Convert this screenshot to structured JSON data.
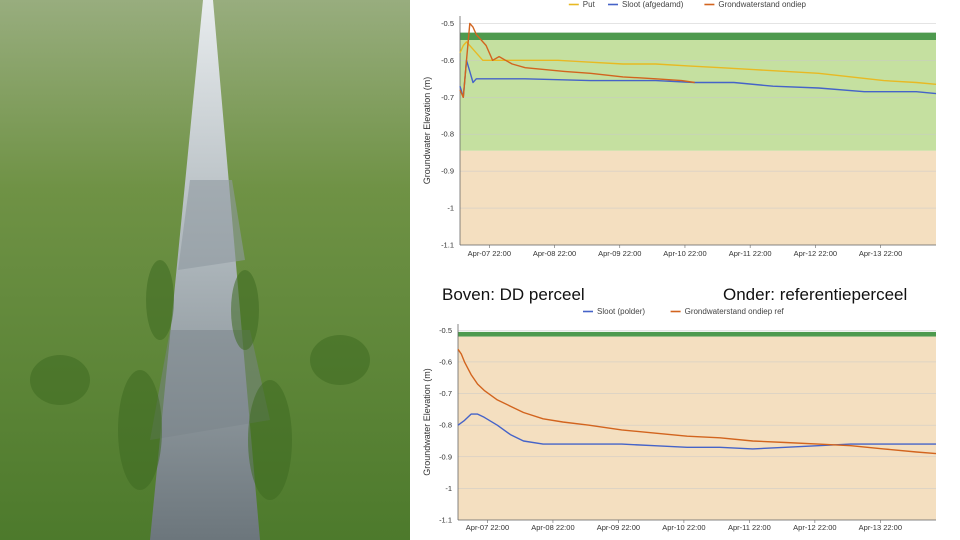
{
  "captions": {
    "left": "Boven: DD perceel",
    "right": "Onder: referentieperceel"
  },
  "photo": {
    "icon": "flooded-field-ditch-photo",
    "colors": {
      "grass": "#5f8a3a",
      "water": "#9aa3a8"
    }
  },
  "chart_data": [
    {
      "type": "line",
      "title": "",
      "xlabel": "",
      "ylabel": "Groundwater Elevation (m)",
      "ylim": [
        -1.1,
        -0.48
      ],
      "yticks": [
        -0.5,
        -0.6,
        -0.7,
        -0.8,
        -0.9,
        -1,
        -1.1
      ],
      "ytick_labels": [
        "-0.5",
        "-0.6",
        "-0.7",
        "-0.8",
        "-0.9",
        "-1",
        "-1.1"
      ],
      "xlim": [
        0,
        7.3
      ],
      "xticks": [
        0.45,
        1.45,
        2.45,
        3.45,
        4.45,
        5.45,
        6.45
      ],
      "xtick_labels": [
        "Apr-07 22:00",
        "Apr-08 22:00",
        "Apr-09 22:00",
        "Apr-10 22:00",
        "Apr-11 22:00",
        "Apr-12 22:00",
        "Apr-13 22:00"
      ],
      "legend": "top",
      "grid": true,
      "bands": [
        {
          "from": -0.545,
          "to": -0.525,
          "color": "#4e9a4e"
        },
        {
          "from": -0.845,
          "to": -0.545,
          "color": "#c5e0a0"
        },
        {
          "from": -1.1,
          "to": -0.845,
          "color": "#f4dfc0"
        }
      ],
      "series": [
        {
          "name": "Put",
          "color": "#e8b923",
          "x": [
            0,
            0.05,
            0.1,
            0.2,
            0.35,
            0.6,
            1.0,
            1.5,
            2.0,
            2.5,
            3.0,
            3.5,
            4.0,
            4.5,
            5.0,
            5.5,
            6.0,
            6.5,
            7.0,
            7.3
          ],
          "y": [
            -0.58,
            -0.56,
            -0.55,
            -0.57,
            -0.6,
            -0.6,
            -0.6,
            -0.6,
            -0.605,
            -0.61,
            -0.61,
            -0.615,
            -0.62,
            -0.625,
            -0.63,
            -0.635,
            -0.645,
            -0.655,
            -0.66,
            -0.665
          ]
        },
        {
          "name": "Sloot (afgedamd)",
          "color": "#4563c8",
          "x": [
            0,
            0.05,
            0.1,
            0.15,
            0.2,
            0.25,
            0.3,
            1.0,
            2.0,
            3.0,
            3.6,
            4.2,
            4.8,
            5.5,
            6.2,
            7.0,
            7.3
          ],
          "y": [
            -0.67,
            -0.7,
            -0.6,
            -0.63,
            -0.66,
            -0.65,
            -0.65,
            -0.65,
            -0.655,
            -0.655,
            -0.66,
            -0.66,
            -0.67,
            -0.675,
            -0.685,
            -0.685,
            -0.69
          ]
        },
        {
          "name": "Grondwaterstand ondiep",
          "color": "#d2641e",
          "x": [
            0,
            0.05,
            0.1,
            0.15,
            0.2,
            0.25,
            0.3,
            0.4,
            0.5,
            0.6,
            0.7,
            0.8,
            1.0,
            1.3,
            1.6,
            2.0,
            2.5,
            3.0,
            3.4,
            3.6
          ],
          "y": [
            -0.68,
            -0.7,
            -0.6,
            -0.5,
            -0.51,
            -0.53,
            -0.54,
            -0.56,
            -0.6,
            -0.59,
            -0.6,
            -0.61,
            -0.62,
            -0.625,
            -0.63,
            -0.635,
            -0.645,
            -0.65,
            -0.655,
            -0.66
          ]
        }
      ]
    },
    {
      "type": "line",
      "title": "",
      "xlabel": "",
      "ylabel": "Groundwater Elevation (m)",
      "ylim": [
        -1.1,
        -0.48
      ],
      "yticks": [
        -0.5,
        -0.6,
        -0.7,
        -0.8,
        -0.9,
        -1,
        -1.1
      ],
      "ytick_labels": [
        "-0.5",
        "-0.6",
        "-0.7",
        "-0.8",
        "-0.9",
        "-1",
        "-1.1"
      ],
      "xlim": [
        0,
        7.3
      ],
      "xticks": [
        0.45,
        1.45,
        2.45,
        3.45,
        4.45,
        5.45,
        6.45
      ],
      "xtick_labels": [
        "Apr-07 22:00",
        "Apr-08 22:00",
        "Apr-09 22:00",
        "Apr-10 22:00",
        "Apr-11 22:00",
        "Apr-12 22:00",
        "Apr-13 22:00"
      ],
      "legend": "top",
      "grid": true,
      "bands": [
        {
          "from": -0.52,
          "to": -0.505,
          "color": "#4e9a4e"
        },
        {
          "from": -1.1,
          "to": -0.52,
          "color": "#f4dfc0"
        }
      ],
      "series": [
        {
          "name": "Sloot (polder)",
          "color": "#4563c8",
          "x": [
            0,
            0.1,
            0.2,
            0.3,
            0.4,
            0.6,
            0.8,
            1.0,
            1.3,
            1.6,
            2.0,
            2.5,
            3.0,
            3.5,
            4.0,
            4.5,
            5.0,
            5.5,
            6.0,
            6.5,
            7.0,
            7.3
          ],
          "y": [
            -0.8,
            -0.785,
            -0.765,
            -0.765,
            -0.775,
            -0.8,
            -0.83,
            -0.85,
            -0.86,
            -0.86,
            -0.86,
            -0.86,
            -0.865,
            -0.87,
            -0.87,
            -0.875,
            -0.87,
            -0.865,
            -0.86,
            -0.86,
            -0.86,
            -0.86
          ]
        },
        {
          "name": "Grondwaterstand ondiep ref",
          "color": "#d2641e",
          "x": [
            0,
            0.05,
            0.1,
            0.2,
            0.3,
            0.4,
            0.6,
            0.8,
            1.0,
            1.3,
            1.6,
            2.0,
            2.5,
            3.0,
            3.5,
            4.0,
            4.5,
            5.0,
            5.5,
            6.0,
            6.5,
            7.0,
            7.3
          ],
          "y": [
            -0.56,
            -0.575,
            -0.6,
            -0.64,
            -0.67,
            -0.69,
            -0.72,
            -0.74,
            -0.76,
            -0.78,
            -0.79,
            -0.8,
            -0.815,
            -0.825,
            -0.835,
            -0.84,
            -0.85,
            -0.855,
            -0.86,
            -0.865,
            -0.875,
            -0.885,
            -0.89
          ]
        }
      ]
    }
  ]
}
